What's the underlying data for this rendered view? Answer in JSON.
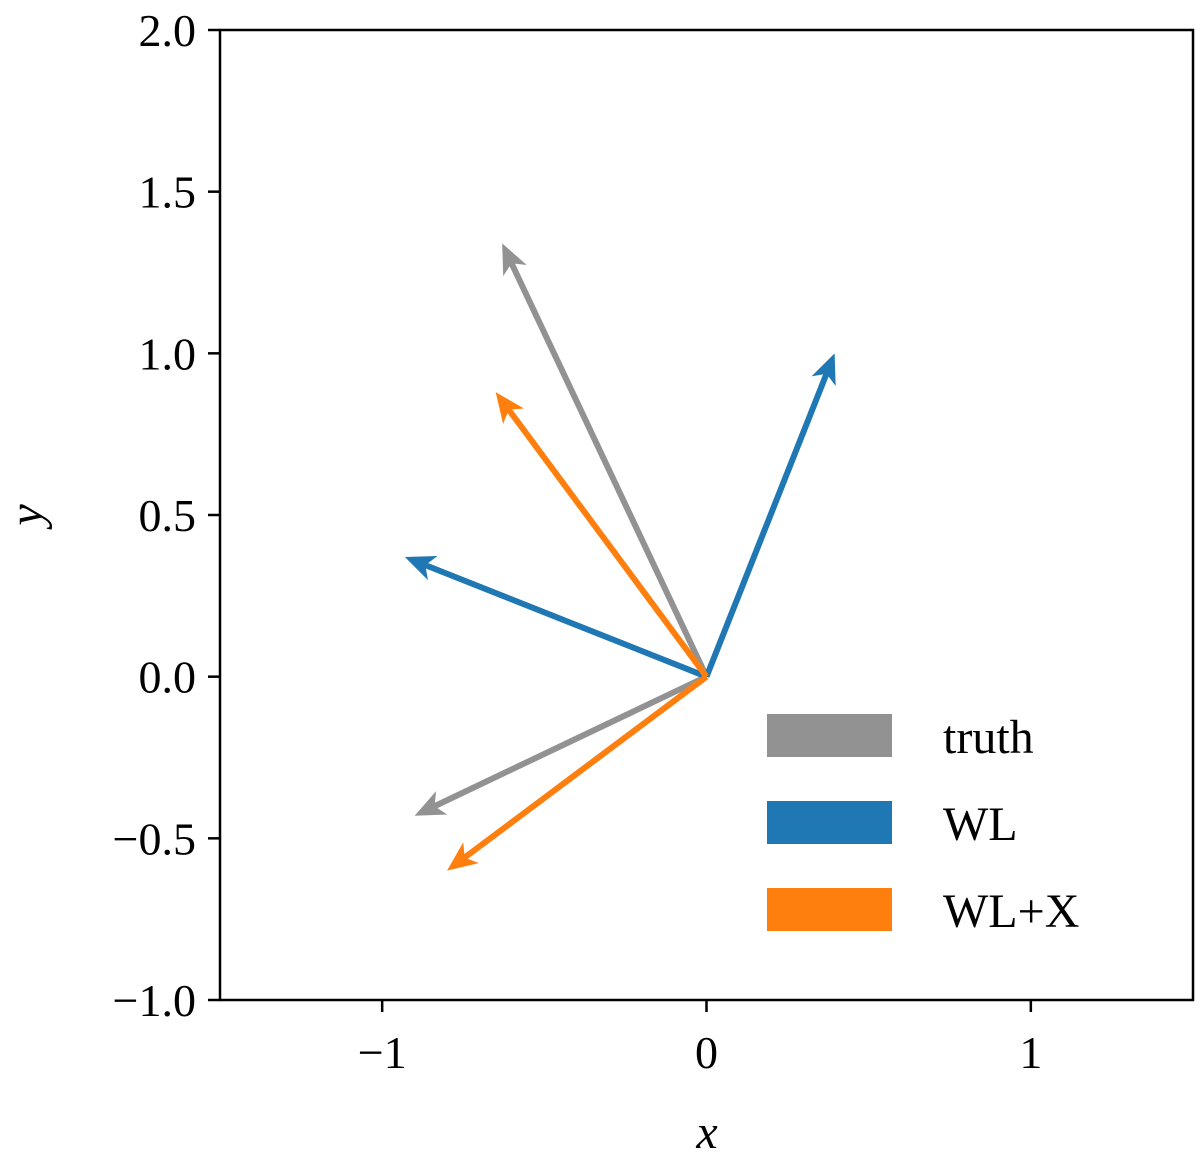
{
  "chart_data": {
    "type": "quiver",
    "title": "",
    "xlabel": "x",
    "ylabel": "y",
    "xlim": [
      -1.5,
      1.5
    ],
    "ylim": [
      -1.0,
      2.0
    ],
    "xticks": [
      -1,
      0,
      1
    ],
    "xtick_labels": [
      "−1",
      "0",
      "1"
    ],
    "yticks": [
      -1.0,
      -0.5,
      0.0,
      0.5,
      1.0,
      1.5,
      2.0
    ],
    "ytick_labels": [
      "−1.0",
      "−0.5",
      "0.0",
      "0.5",
      "1.0",
      "1.5",
      "2.0"
    ],
    "grid": false,
    "legend_position": "lower-right",
    "origin": [
      0,
      0
    ],
    "series": [
      {
        "name": "truth",
        "color": "#929292",
        "vectors": [
          [
            -0.63,
            1.34
          ],
          [
            -0.9,
            -0.43
          ]
        ]
      },
      {
        "name": "WL",
        "color": "#1f77b4",
        "vectors": [
          [
            0.395,
            1.0
          ],
          [
            -0.93,
            0.37
          ]
        ]
      },
      {
        "name": "WL+X",
        "color": "#ff7f0e",
        "vectors": [
          [
            -0.65,
            0.88
          ],
          [
            -0.8,
            -0.6
          ]
        ]
      }
    ]
  }
}
